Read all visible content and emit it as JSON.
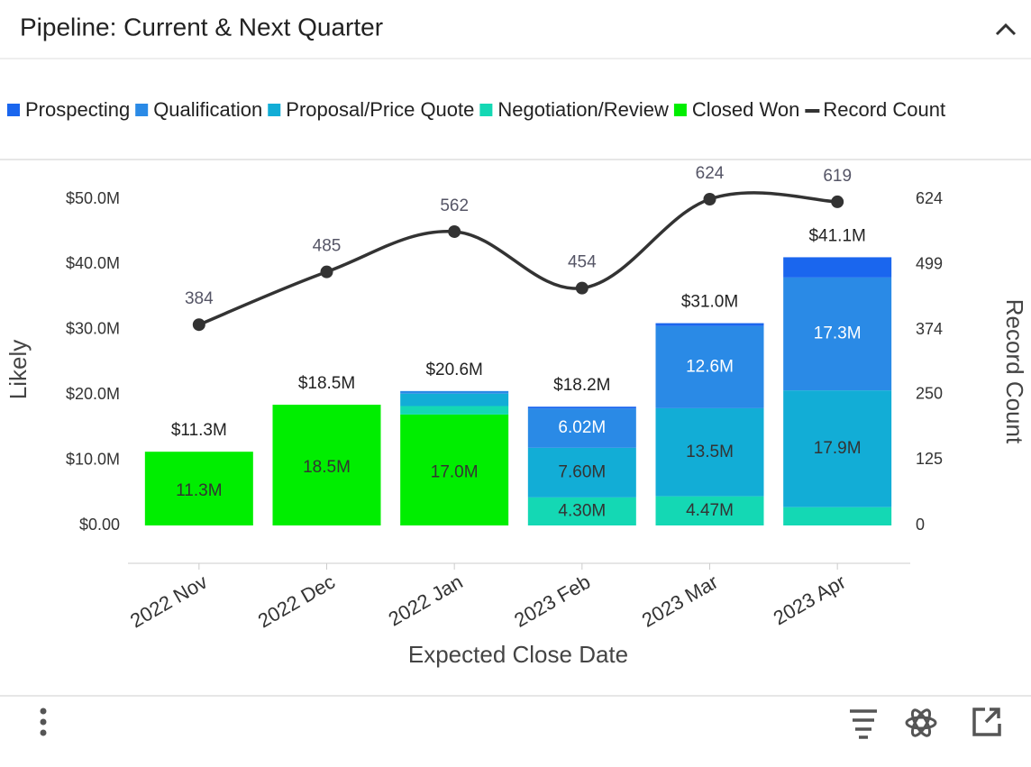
{
  "header": {
    "title": "Pipeline: Current & Next Quarter"
  },
  "chart_data": {
    "type": "bar",
    "stacked": true,
    "categories": [
      "2022 Nov",
      "2022 Dec",
      "2022 Jan",
      "2023 Feb",
      "2023 Mar",
      "2023 Apr"
    ],
    "xlabel": "Expected Close Date",
    "ylabel": "Likely",
    "y2label": "Record Count",
    "ylim": [
      0,
      50000000
    ],
    "yticks": [
      {
        "value": 0,
        "label": "$0.00"
      },
      {
        "value": 10000000,
        "label": "$10.0M"
      },
      {
        "value": 20000000,
        "label": "$20.0M"
      },
      {
        "value": 30000000,
        "label": "$30.0M"
      },
      {
        "value": 40000000,
        "label": "$40.0M"
      },
      {
        "value": 50000000,
        "label": "$50.0M"
      }
    ],
    "y2lim": [
      0,
      624
    ],
    "y2ticks": [
      0,
      125,
      250,
      374,
      499,
      624
    ],
    "legend": "top",
    "total_labels": [
      "$11.3M",
      "$18.5M",
      "$20.6M",
      "$18.2M",
      "$31.0M",
      "$41.1M"
    ],
    "series": [
      {
        "name": "Prospecting",
        "color": "#1a66ee",
        "values": [
          0,
          0,
          0,
          280000,
          430000,
          3100000
        ],
        "value_labels": [
          null,
          null,
          null,
          null,
          null,
          null
        ]
      },
      {
        "name": "Qualification",
        "color": "#2a8ae6",
        "values": [
          0,
          0,
          400000,
          6020000,
          12600000,
          17300000
        ],
        "value_labels": [
          null,
          null,
          null,
          "6.02M",
          "12.6M",
          "17.3M"
        ]
      },
      {
        "name": "Proposal/Price Quote",
        "color": "#12add6",
        "values": [
          0,
          0,
          1900000,
          7600000,
          13500000,
          17900000
        ],
        "value_labels": [
          null,
          null,
          null,
          "7.60M",
          "13.5M",
          "17.9M"
        ]
      },
      {
        "name": "Negotiation/Review",
        "color": "#14d8b4",
        "values": [
          0,
          0,
          1300000,
          4300000,
          4470000,
          2800000
        ],
        "value_labels": [
          null,
          null,
          null,
          "4.30M",
          "4.47M",
          null
        ]
      },
      {
        "name": "Closed Won",
        "color": "#00ee00",
        "values": [
          11300000,
          18500000,
          17000000,
          0,
          0,
          0
        ],
        "value_labels": [
          "11.3M",
          "18.5M",
          "17.0M",
          null,
          null,
          null
        ]
      },
      {
        "name": "Record Count",
        "type": "line",
        "axis": "y2",
        "color": "#333333",
        "values": [
          384,
          485,
          562,
          454,
          624,
          619
        ]
      }
    ]
  }
}
